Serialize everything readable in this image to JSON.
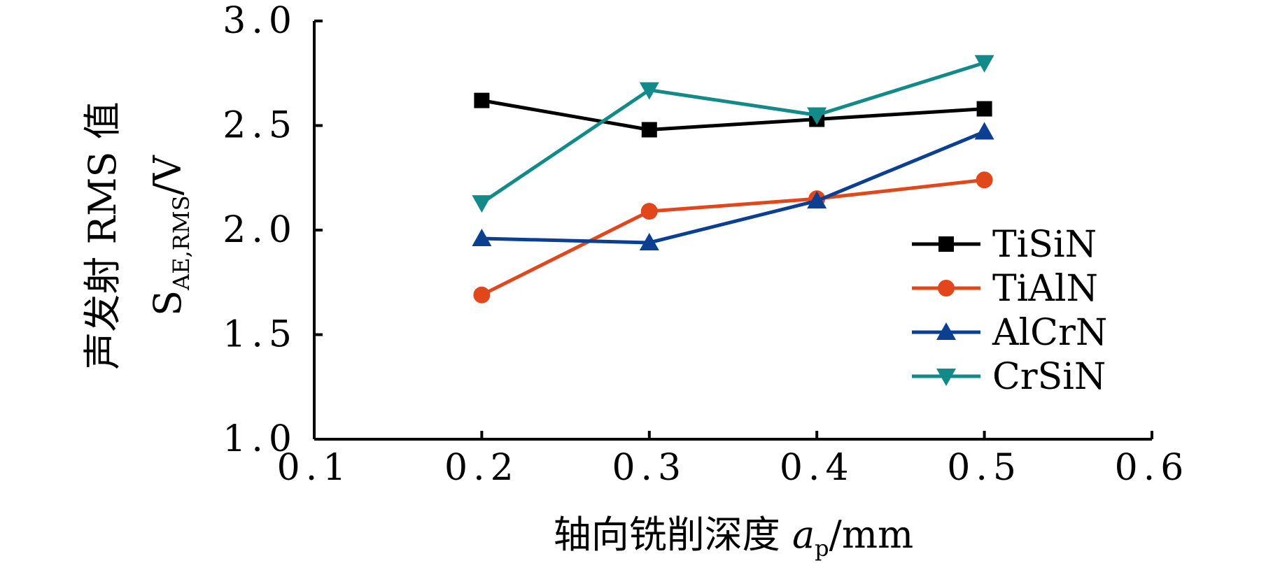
{
  "chart_data": {
    "type": "line",
    "x": [
      0.2,
      0.3,
      0.4,
      0.5
    ],
    "xlim": [
      0.1,
      0.6
    ],
    "ylim": [
      1.0,
      3.0
    ],
    "xticks": [
      "0.1",
      "0.2",
      "0.3",
      "0.4",
      "0.5",
      "0.6"
    ],
    "yticks": [
      "1.0",
      "1.5",
      "2.0",
      "2.5",
      "3.0"
    ],
    "xlabel": {
      "prefix": "轴向铣削深度 ",
      "var": "a",
      "sub": "p",
      "suffix": "/mm"
    },
    "ylabel": {
      "line1": "声发射 RMS 值",
      "var": "S",
      "sub": "AE,RMS",
      "suffix": "/V"
    },
    "grid": false,
    "legend_position": "right",
    "series": [
      {
        "name": "TiSiN",
        "values": [
          2.62,
          2.48,
          2.53,
          2.58
        ],
        "color": "#000000",
        "marker": "square"
      },
      {
        "name": "TiAlN",
        "values": [
          1.69,
          2.09,
          2.15,
          2.24
        ],
        "color": "#e2461b",
        "marker": "circle"
      },
      {
        "name": "AlCrN",
        "values": [
          1.96,
          1.94,
          2.14,
          2.47
        ],
        "color": "#0b3f91",
        "marker": "triangle-up"
      },
      {
        "name": "CrSiN",
        "values": [
          2.13,
          2.67,
          2.55,
          2.8
        ],
        "color": "#138a8a",
        "marker": "triangle-down"
      }
    ]
  }
}
